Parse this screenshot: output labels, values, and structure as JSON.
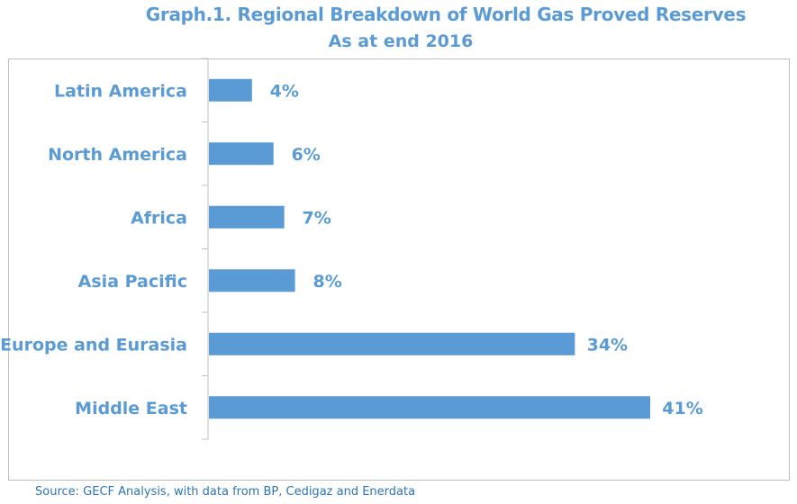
{
  "chart_data": {
    "type": "bar",
    "orientation": "horizontal",
    "title": "Graph.1. Regional Breakdown of World Gas Proved Reserves",
    "subtitle": "As at end 2016",
    "categories": [
      "Latin America",
      "North America",
      "Africa",
      "Asia Pacific",
      "Europe and Eurasia",
      "Middle East"
    ],
    "values": [
      4,
      6,
      7,
      8,
      34,
      41
    ],
    "data_labels": [
      "4%",
      "6%",
      "7%",
      "8%",
      "34%",
      "41%"
    ],
    "unit": "%",
    "xlim": [
      0,
      41
    ],
    "grid": false,
    "legend": "none",
    "bar_color": "#5B9BD5",
    "text_color": "#5B9BD5"
  },
  "source": "Source: GECF Analysis, with data from BP, Cedigaz and Enerdata"
}
